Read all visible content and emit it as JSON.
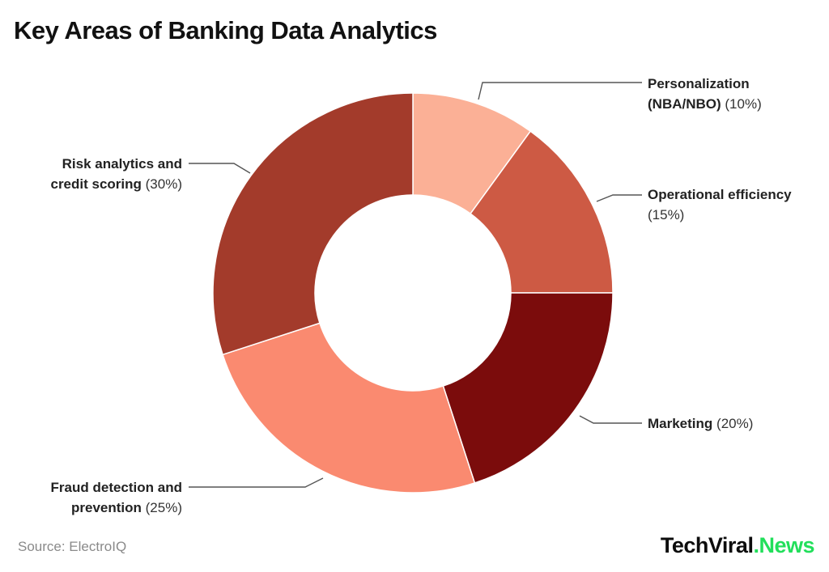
{
  "title": "Key Areas of Banking Data Analytics",
  "chart_data": {
    "type": "pie",
    "subtype": "donut",
    "title": "Key Areas of Banking Data Analytics",
    "categories": [
      "Personalization (NBA/NBO)",
      "Operational efficiency",
      "Marketing",
      "Fraud detection and prevention",
      "Risk analytics and credit scoring"
    ],
    "values": [
      10,
      15,
      20,
      25,
      30
    ],
    "unit": "%",
    "colors": [
      "#FBB096",
      "#CD5A44",
      "#7B0C0C",
      "#FA8A70",
      "#A33B2B"
    ],
    "start_angle_deg": 0,
    "direction": "clockwise",
    "inner_radius_ratio": 0.49,
    "legend_position": "callout-labels",
    "grid": false
  },
  "callouts": [
    {
      "bold1": "Personalization",
      "bold2": "(NBA/NBO)",
      "pct": "(10%)"
    },
    {
      "bold1": "Operational efficiency",
      "pct": "(15%)"
    },
    {
      "bold1": "Marketing",
      "pct": "(20%)"
    },
    {
      "bold1": "Fraud detection and",
      "bold2": "prevention",
      "pct": "(25%)"
    },
    {
      "bold1": "Risk analytics and",
      "bold2": "credit scoring",
      "pct": "(30%)"
    }
  ],
  "footer": {
    "source": "Source: ElectroIQ",
    "brand_black": "TechViral",
    "brand_green": ".News",
    "brand_green_color": "#22DF5B"
  }
}
